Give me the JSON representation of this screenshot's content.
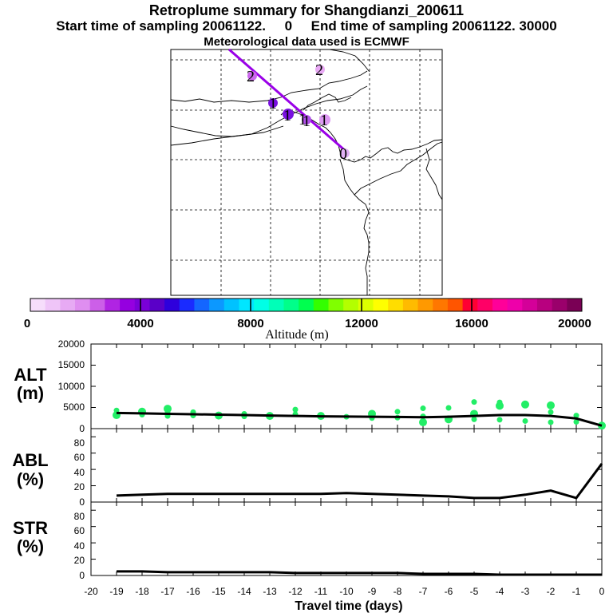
{
  "titles": {
    "line1": "Retroplume summary for Shangdianzi_200611",
    "line2": "Start time of sampling 20061122.     0     End time of sampling 20061122. 30000",
    "line3": "Meteorological data used is ECMWF"
  },
  "colorbar": {
    "title": "Altitude  (m)",
    "tick_labels": [
      "0",
      "4000",
      "8000",
      "12000",
      "16000",
      "20000"
    ],
    "colors": [
      "#f6ddfb",
      "#efc5f8",
      "#e7aaf4",
      "#df8ef0",
      "#cc5fe8",
      "#b024e3",
      "#9500e0",
      "#7a00d8",
      "#5a00c8",
      "#2e00dc",
      "#1a2bff",
      "#1466ff",
      "#0c98ff",
      "#00c2ff",
      "#00e6ff",
      "#00ffe6",
      "#00ffb8",
      "#00ff8a",
      "#00ff4f",
      "#33ff00",
      "#80ff00",
      "#b3ff00",
      "#ddff00",
      "#ffff00",
      "#ffdd00",
      "#ffbb00",
      "#ff9900",
      "#ff7700",
      "#ff5500",
      "#ff0033",
      "#ff0066",
      "#ff0099",
      "#ee00aa",
      "#d40099",
      "#b8007f",
      "#9a006b",
      "#7a0055"
    ]
  },
  "map": {
    "labels": [
      {
        "text": "2"
      },
      {
        "text": "2"
      },
      {
        "text": "1"
      },
      {
        "text": "1"
      },
      {
        "text": "1"
      },
      {
        "text": "1"
      },
      {
        "text": "1"
      },
      {
        "text": "0"
      }
    ]
  },
  "axes": {
    "x_title": "Travel time (days)",
    "x_tick_labels": [
      "-20",
      "-19",
      "-18",
      "-17",
      "-16",
      "-15",
      "-14",
      "-13",
      "-12",
      "-11",
      "-10",
      "-9",
      "-8",
      "-7",
      "-6",
      "-5",
      "-4",
      "-3",
      "-2",
      "-1",
      "0"
    ],
    "alt": {
      "name": "ALT",
      "unit": "(m)",
      "tick_labels": [
        "20000",
        "15000",
        "10000",
        "5000",
        "0"
      ]
    },
    "abl": {
      "name": "ABL",
      "unit": "(%)",
      "tick_labels": [
        "80",
        "60",
        "40",
        "20",
        "0"
      ]
    },
    "str": {
      "name": "STR",
      "unit": "(%)",
      "tick_labels": [
        "80",
        "60",
        "40",
        "20",
        "0"
      ]
    }
  },
  "chart_data": [
    {
      "type": "line",
      "title": "ALT (m)",
      "xlabel": "Travel time (days)",
      "ylabel": "ALT (m)",
      "xlim": [
        -20,
        0
      ],
      "ylim": [
        0,
        20000
      ],
      "line": {
        "x": [
          -19,
          -18,
          -17,
          -16,
          -15,
          -14,
          -13,
          -12,
          -11,
          -10,
          -9,
          -8,
          -7,
          -6,
          -5,
          -4,
          -3,
          -2,
          -1,
          0
        ],
        "y": [
          3700,
          3600,
          3500,
          3400,
          3300,
          3200,
          3100,
          3000,
          2900,
          2850,
          2800,
          2750,
          2700,
          2800,
          3000,
          3200,
          3200,
          3000,
          2400,
          700
        ]
      },
      "points": {
        "color": "#22ee66",
        "x": [
          -19,
          -19,
          -18,
          -18,
          -17,
          -17,
          -17,
          -16,
          -16,
          -15,
          -14,
          -14,
          -13,
          -12,
          -12,
          -11,
          -10,
          -9,
          -9,
          -8,
          -8,
          -7,
          -7,
          -7,
          -6,
          -6,
          -5,
          -5,
          -5,
          -4,
          -4,
          -4,
          -3,
          -3,
          -2,
          -2,
          -2,
          -1,
          -1,
          0
        ],
        "y": [
          3200,
          4300,
          3300,
          4000,
          3000,
          3900,
          4700,
          3100,
          3900,
          3100,
          2900,
          3500,
          3000,
          3400,
          4500,
          3000,
          2800,
          2500,
          3500,
          2600,
          4000,
          1500,
          2900,
          4800,
          2200,
          4900,
          2200,
          3500,
          6300,
          2100,
          5400,
          6200,
          1800,
          5700,
          1500,
          3900,
          5500,
          1600,
          3100,
          700
        ]
      }
    },
    {
      "type": "line",
      "title": "ABL (%)",
      "xlabel": "Travel time (days)",
      "ylabel": "ABL (%)",
      "xlim": [
        -20,
        0
      ],
      "ylim": [
        0,
        90
      ],
      "x": [
        -19,
        -18,
        -17,
        -16,
        -15,
        -14,
        -13,
        -12,
        -11,
        -10,
        -9,
        -8,
        -7,
        -6,
        -5,
        -4,
        -3,
        -2,
        -1,
        0
      ],
      "y": [
        8,
        9,
        10,
        10,
        10,
        10,
        10,
        10,
        10,
        11,
        10,
        9,
        8,
        7,
        5,
        5,
        9,
        14,
        5,
        47
      ]
    },
    {
      "type": "line",
      "title": "STR (%)",
      "xlabel": "Travel time (days)",
      "ylabel": "STR (%)",
      "xlim": [
        -20,
        0
      ],
      "ylim": [
        0,
        90
      ],
      "x": [
        -19,
        -18,
        -17,
        -16,
        -15,
        -14,
        -13,
        -12,
        -11,
        -10,
        -9,
        -8,
        -7,
        -6,
        -5,
        -4,
        -3,
        -2,
        -1,
        0
      ],
      "y": [
        5,
        5,
        4,
        4,
        4,
        4,
        4,
        3,
        3,
        3,
        3,
        3,
        2,
        2,
        2,
        1,
        1,
        1,
        1,
        1
      ]
    }
  ]
}
